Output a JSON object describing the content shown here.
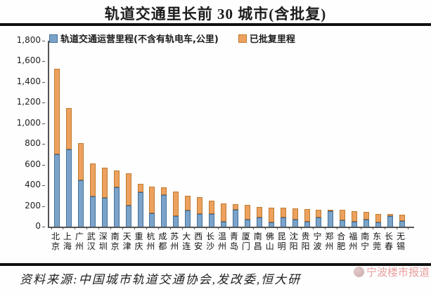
{
  "title": "轨道交通里长前 30 城市(含批复)",
  "legend": {
    "operating": {
      "label": "轨道交通运营里程(不含有轨电车,公里)",
      "color": "#7ba3c9",
      "border": "#41719c"
    },
    "approved": {
      "label": "已批复里程",
      "color": "#eda15e",
      "border": "#bf7b2f"
    }
  },
  "footer": {
    "source_text": "资料来源:中国城市轨道交通协会,发改委,恒大研"
  },
  "watermark": {
    "text": "宁波楼市报道",
    "color": "#e07d7d"
  },
  "colors": {
    "axis": "#555555",
    "divider": "#111111",
    "background": "#fefefe"
  },
  "chart_data": {
    "type": "bar",
    "stacked": true,
    "title": "轨道交通里长前 30 城市(含批复)",
    "xlabel": "",
    "ylabel": "",
    "ylim": [
      0,
      1800
    ],
    "ytick_step": 200,
    "ytick_labels": [
      "0",
      "200",
      "400",
      "600",
      "800",
      "1,000",
      "1,200",
      "1,400",
      "1,600",
      "1,800"
    ],
    "grid": false,
    "legend_position": "top-inside",
    "categories": [
      "北京",
      "上海",
      "广州",
      "武汉",
      "深圳",
      "南京",
      "天津",
      "重庆",
      "杭州",
      "成都",
      "苏州",
      "大连",
      "西安",
      "长沙",
      "温州",
      "青岛",
      "厦门",
      "南昌",
      "佛山",
      "昆明",
      "沈阳",
      "贵阳",
      "宁波",
      "郑州",
      "合肥",
      "福州",
      "南宁",
      "东莞",
      "长春",
      "无锡"
    ],
    "series": [
      {
        "name": "轨道交通运营里程(不含有轨电车,公里)",
        "color": "#7ba3c9",
        "values": [
          700,
          750,
          450,
          290,
          280,
          380,
          205,
          330,
          130,
          305,
          100,
          155,
          125,
          120,
          50,
          165,
          70,
          90,
          40,
          85,
          65,
          45,
          90,
          150,
          60,
          50,
          65,
          40,
          100,
          55
        ]
      },
      {
        "name": "已批复里程",
        "color": "#eda15e",
        "values": [
          830,
          400,
          360,
          320,
          290,
          160,
          310,
          80,
          260,
          75,
          240,
          140,
          165,
          130,
          175,
          55,
          140,
          100,
          145,
          95,
          110,
          125,
          78,
          15,
          100,
          100,
          75,
          80,
          18,
          60
        ]
      }
    ],
    "totals": [
      1530,
      1150,
      810,
      610,
      570,
      540,
      515,
      410,
      390,
      380,
      340,
      295,
      290,
      250,
      225,
      220,
      210,
      190,
      185,
      180,
      175,
      170,
      168,
      165,
      160,
      150,
      140,
      120,
      118,
      115
    ]
  }
}
